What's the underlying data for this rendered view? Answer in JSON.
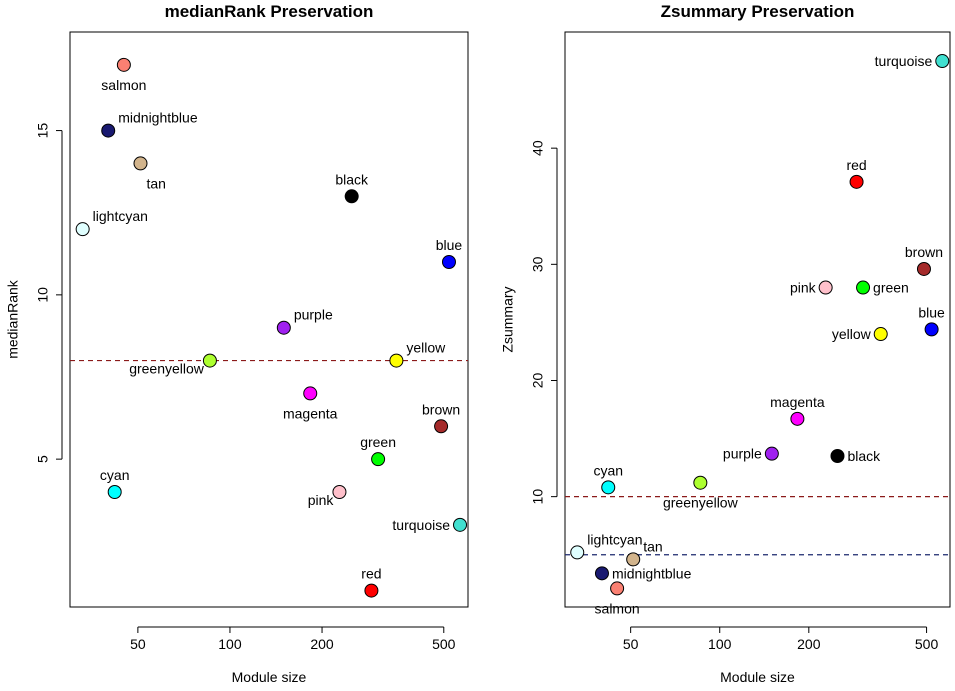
{
  "chart_data": [
    {
      "type": "scatter",
      "title": "medianRank Preservation",
      "xlabel": "Module size",
      "ylabel": "medianRank",
      "xscale": "log",
      "xlim": [
        30,
        600
      ],
      "ylim": [
        0.5,
        18
      ],
      "xticks": [
        50,
        100,
        200,
        500
      ],
      "yticks": [
        5,
        10,
        15
      ],
      "hlines": [
        {
          "y": 8,
          "color": "#8b1a1a"
        }
      ],
      "points": [
        {
          "name": "salmon",
          "x": 45,
          "y": 17,
          "color": "#fa8072",
          "label_pos": "below"
        },
        {
          "name": "midnightblue",
          "x": 40,
          "y": 15,
          "color": "#191970",
          "label_pos": "above-right"
        },
        {
          "name": "tan",
          "x": 51,
          "y": 14,
          "color": "#d2b48c",
          "label_pos": "below-right"
        },
        {
          "name": "black",
          "x": 250,
          "y": 13,
          "color": "#000000",
          "label_pos": "above"
        },
        {
          "name": "lightcyan",
          "x": 33,
          "y": 12,
          "color": "#e0ffff",
          "label_pos": "above-right"
        },
        {
          "name": "blue",
          "x": 520,
          "y": 11,
          "color": "#0000ff",
          "label_pos": "above"
        },
        {
          "name": "purple",
          "x": 150,
          "y": 9,
          "color": "#a020f0",
          "label_pos": "above-right"
        },
        {
          "name": "greenyellow",
          "x": 86,
          "y": 8,
          "color": "#adff2f",
          "label_pos": "below-left"
        },
        {
          "name": "yellow",
          "x": 350,
          "y": 8,
          "color": "#ffff00",
          "label_pos": "above-right"
        },
        {
          "name": "magenta",
          "x": 183,
          "y": 7,
          "color": "#ff00ff",
          "label_pos": "below"
        },
        {
          "name": "brown",
          "x": 490,
          "y": 6,
          "color": "#a52a2a",
          "label_pos": "above"
        },
        {
          "name": "green",
          "x": 305,
          "y": 5,
          "color": "#00ff00",
          "label_pos": "above"
        },
        {
          "name": "cyan",
          "x": 42,
          "y": 4,
          "color": "#00ffff",
          "label_pos": "above"
        },
        {
          "name": "pink",
          "x": 228,
          "y": 4,
          "color": "#ffc0cb",
          "label_pos": "below-left"
        },
        {
          "name": "turquoise",
          "x": 565,
          "y": 3,
          "color": "#40e0d0",
          "label_pos": "left"
        },
        {
          "name": "red",
          "x": 290,
          "y": 1,
          "color": "#ff0000",
          "label_pos": "above"
        }
      ]
    },
    {
      "type": "scatter",
      "title": "Zsummary Preservation",
      "xlabel": "Module size",
      "ylabel": "Zsummary",
      "xscale": "log",
      "xlim": [
        30,
        600
      ],
      "ylim": [
        0.5,
        50
      ],
      "xticks": [
        50,
        100,
        200,
        500
      ],
      "yticks": [
        10,
        20,
        30,
        40
      ],
      "hlines": [
        {
          "y": 10,
          "color": "#8b1a1a"
        },
        {
          "y": 5,
          "color": "#1c2a6e"
        }
      ],
      "points": [
        {
          "name": "turquoise",
          "x": 565,
          "y": 47.5,
          "color": "#40e0d0",
          "label_pos": "left"
        },
        {
          "name": "red",
          "x": 290,
          "y": 37.1,
          "color": "#ff0000",
          "label_pos": "above"
        },
        {
          "name": "brown",
          "x": 490,
          "y": 29.6,
          "color": "#a52a2a",
          "label_pos": "above"
        },
        {
          "name": "pink",
          "x": 228,
          "y": 28.0,
          "color": "#ffc0cb",
          "label_pos": "left"
        },
        {
          "name": "green",
          "x": 305,
          "y": 28.0,
          "color": "#00ff00",
          "label_pos": "right"
        },
        {
          "name": "blue",
          "x": 520,
          "y": 24.4,
          "color": "#0000ff",
          "label_pos": "above"
        },
        {
          "name": "yellow",
          "x": 350,
          "y": 24.0,
          "color": "#ffff00",
          "label_pos": "left"
        },
        {
          "name": "magenta",
          "x": 183,
          "y": 16.7,
          "color": "#ff00ff",
          "label_pos": "above"
        },
        {
          "name": "purple",
          "x": 150,
          "y": 13.7,
          "color": "#a020f0",
          "label_pos": "left"
        },
        {
          "name": "black",
          "x": 250,
          "y": 13.5,
          "color": "#000000",
          "label_pos": "right"
        },
        {
          "name": "greenyellow",
          "x": 86,
          "y": 11.2,
          "color": "#adff2f",
          "label_pos": "below"
        },
        {
          "name": "cyan",
          "x": 42,
          "y": 10.8,
          "color": "#00ffff",
          "label_pos": "above"
        },
        {
          "name": "lightcyan",
          "x": 33,
          "y": 5.2,
          "color": "#e0ffff",
          "label_pos": "above-right"
        },
        {
          "name": "tan",
          "x": 51,
          "y": 4.6,
          "color": "#d2b48c",
          "label_pos": "above-right"
        },
        {
          "name": "midnightblue",
          "x": 40,
          "y": 3.4,
          "color": "#191970",
          "label_pos": "right"
        },
        {
          "name": "salmon",
          "x": 45,
          "y": 2.1,
          "color": "#fa8072",
          "label_pos": "below"
        }
      ]
    }
  ]
}
